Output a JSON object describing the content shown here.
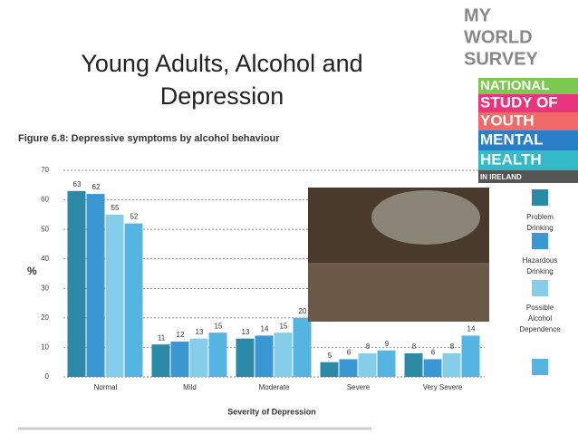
{
  "slide_title": [
    "Young Adults, Alcohol and",
    "Depression"
  ],
  "logo": {
    "lines": [
      "MY",
      "WORLD",
      "SURVEY",
      "NATIONAL",
      "STUDY OF",
      "YOUTH",
      "MENTAL",
      "HEALTH",
      "IN IRELAND"
    ]
  },
  "chart_data": {
    "type": "bar",
    "title": "Figure 6.8: Depressive symptoms by alcohol behaviour",
    "x_label": "Severity of Depression",
    "y_label": "%",
    "categories": [
      "Normal",
      "Mild",
      "Moderate",
      "Severe",
      "Very Severe"
    ],
    "series": [
      {
        "name": "Problem Drinking",
        "color": "#2c8aa6",
        "values": [
          63,
          11,
          13,
          5,
          8
        ]
      },
      {
        "name": "Hazardous Drinking",
        "color": "#3a97d2",
        "values": [
          62,
          12,
          14,
          6,
          6
        ]
      },
      {
        "name": "Possible Alcohol Dependence",
        "color": "#86cdea",
        "values": [
          55,
          13,
          15,
          8,
          8
        ]
      },
      {
        "name": null,
        "color": "#55b5e0",
        "values": [
          52,
          15,
          20,
          9,
          14
        ]
      }
    ],
    "ylim": [
      0,
      70
    ],
    "yticks": [
      0,
      10,
      20,
      30,
      40,
      50,
      60,
      70
    ],
    "grid": true
  }
}
